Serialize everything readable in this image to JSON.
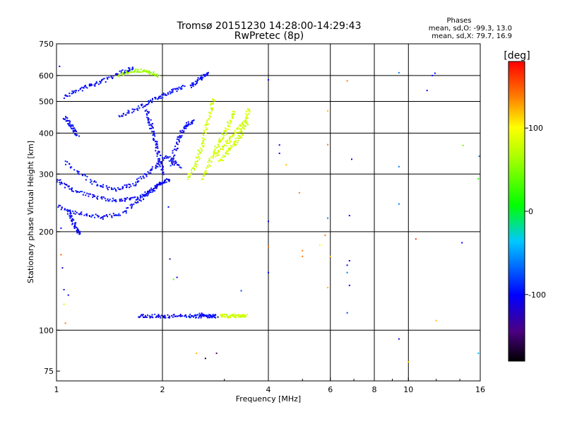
{
  "chart_data": {
    "type": "scatter",
    "title": "Tromsø 20151230 14:28:00-14:29:43",
    "subtitle": "RwPretec (8p)",
    "stats": {
      "heading": "Phases",
      "line1": "mean, sd,O: -99.3, 13.0",
      "line2": "mean, sd,X:  79.7, 16.9"
    },
    "xlabel": "Frequency [MHz]",
    "ylabel": "Stationary phase Virtual Height [km]",
    "x_scale": "log",
    "y_scale": "log",
    "xlim": [
      1,
      16
    ],
    "ylim": [
      70,
      750
    ],
    "x_ticks": [
      {
        "value": 1,
        "label": "1"
      },
      {
        "value": 2,
        "label": "2"
      },
      {
        "value": 4,
        "label": "4"
      },
      {
        "value": 6,
        "label": "6"
      },
      {
        "value": 8,
        "label": "8"
      },
      {
        "value": 10,
        "label": "10"
      },
      {
        "value": 16,
        "label": "16"
      }
    ],
    "y_ticks": [
      {
        "value": 75,
        "label": "75"
      },
      {
        "value": 100,
        "label": "100"
      },
      {
        "value": 200,
        "label": "200"
      },
      {
        "value": 300,
        "label": "300"
      },
      {
        "value": 400,
        "label": "400"
      },
      {
        "value": 500,
        "label": "500"
      },
      {
        "value": 600,
        "label": "600"
      },
      {
        "value": 750,
        "label": "750"
      }
    ],
    "x_grid": [
      2,
      4,
      6,
      8,
      10
    ],
    "y_grid": [
      100,
      200,
      300,
      400,
      500,
      600
    ],
    "grid": true,
    "colorbar": {
      "label": "[deg]",
      "range": [
        -180,
        180
      ],
      "ticks": [
        {
          "value": 100,
          "label": "100"
        },
        {
          "value": 0,
          "label": "0"
        },
        {
          "value": -100,
          "label": "-100"
        }
      ]
    },
    "series": [
      {
        "phase": -100,
        "curve": [
          [
            1.0,
            290
          ],
          [
            1.1,
            270
          ],
          [
            1.3,
            255
          ],
          [
            1.5,
            250
          ],
          [
            1.7,
            255
          ],
          [
            1.85,
            268
          ],
          [
            2.0,
            285
          ]
        ]
      },
      {
        "phase": -100,
        "curve": [
          [
            1.0,
            240
          ],
          [
            1.15,
            228
          ],
          [
            1.35,
            222
          ],
          [
            1.55,
            230
          ],
          [
            1.75,
            255
          ],
          [
            1.95,
            280
          ],
          [
            2.1,
            292
          ]
        ]
      },
      {
        "phase": -100,
        "curve": [
          [
            1.05,
            330
          ],
          [
            1.25,
            285
          ],
          [
            1.45,
            270
          ],
          [
            1.65,
            280
          ],
          [
            1.85,
            310
          ],
          [
            2.05,
            340
          ],
          [
            2.25,
            315
          ]
        ]
      },
      {
        "phase": -100,
        "curve": [
          [
            1.05,
            520
          ],
          [
            1.2,
            555
          ],
          [
            1.35,
            580
          ],
          [
            1.55,
            620
          ],
          [
            1.65,
            635
          ]
        ]
      },
      {
        "phase": -100,
        "curve": [
          [
            1.5,
            450
          ],
          [
            1.7,
            480
          ],
          [
            1.9,
            510
          ],
          [
            2.1,
            535
          ],
          [
            2.3,
            560
          ]
        ]
      },
      {
        "phase": -100,
        "curve": [
          [
            1.8,
            470
          ],
          [
            1.85,
            420
          ],
          [
            1.9,
            380
          ],
          [
            1.95,
            340
          ],
          [
            2.0,
            300
          ]
        ]
      },
      {
        "phase": -100,
        "curve": [
          [
            2.4,
            560
          ],
          [
            2.55,
            590
          ],
          [
            2.7,
            615
          ]
        ]
      },
      {
        "phase": -100,
        "curve": [
          [
            2.1,
            320
          ],
          [
            2.2,
            380
          ],
          [
            2.3,
            420
          ],
          [
            2.45,
            440
          ]
        ]
      },
      {
        "phase": -100,
        "curve": [
          [
            1.05,
            450
          ],
          [
            1.1,
            420
          ],
          [
            1.15,
            395
          ]
        ]
      },
      {
        "phase": -100,
        "curve": [
          [
            1.08,
            230
          ],
          [
            1.12,
            210
          ],
          [
            1.16,
            198
          ]
        ]
      },
      {
        "phase": 60,
        "curve": [
          [
            1.5,
            605
          ],
          [
            1.65,
            625
          ],
          [
            1.8,
            620
          ],
          [
            1.95,
            600
          ]
        ]
      },
      {
        "phase": 80,
        "curve": [
          [
            2.35,
            290
          ],
          [
            2.5,
            330
          ],
          [
            2.6,
            380
          ],
          [
            2.7,
            450
          ],
          [
            2.8,
            520
          ]
        ]
      },
      {
        "phase": 80,
        "curve": [
          [
            2.6,
            290
          ],
          [
            2.75,
            340
          ],
          [
            2.9,
            380
          ],
          [
            3.05,
            420
          ],
          [
            3.2,
            470
          ]
        ]
      },
      {
        "phase": 80,
        "curve": [
          [
            2.8,
            340
          ],
          [
            3.0,
            370
          ],
          [
            3.2,
            400
          ],
          [
            3.4,
            440
          ]
        ]
      },
      {
        "phase": 80,
        "curve": [
          [
            2.9,
            330
          ],
          [
            3.1,
            360
          ],
          [
            3.3,
            390
          ],
          [
            3.45,
            430
          ],
          [
            3.5,
            480
          ]
        ]
      },
      {
        "phase": -100,
        "curve": [
          [
            1.7,
            111
          ],
          [
            1.9,
            111
          ],
          [
            2.1,
            111
          ],
          [
            2.4,
            111
          ],
          [
            2.6,
            111
          ]
        ]
      },
      {
        "phase": 80,
        "curve": [
          [
            2.9,
            111
          ],
          [
            3.1,
            111
          ],
          [
            3.3,
            111
          ],
          [
            3.45,
            111
          ]
        ]
      },
      {
        "phase": -100,
        "curve": [
          [
            2.55,
            112
          ],
          [
            2.7,
            111
          ],
          [
            2.85,
            111
          ]
        ]
      }
    ],
    "scattered_points": [
      [
        1.02,
        640,
        -100
      ],
      [
        1.05,
        133,
        -110
      ],
      [
        1.08,
        128,
        -100
      ],
      [
        1.05,
        120,
        80
      ],
      [
        1.06,
        105,
        140
      ],
      [
        1.03,
        170,
        150
      ],
      [
        1.03,
        205,
        -100
      ],
      [
        1.04,
        155,
        -120
      ],
      [
        2.08,
        238,
        -100
      ],
      [
        2.1,
        165,
        -140
      ],
      [
        2.15,
        143,
        40
      ],
      [
        2.2,
        145,
        -110
      ],
      [
        2.5,
        85,
        120
      ],
      [
        2.65,
        82,
        -170
      ],
      [
        2.85,
        85,
        -150
      ],
      [
        3.35,
        132,
        -80
      ],
      [
        4.0,
        582,
        -100
      ],
      [
        4.0,
        215,
        -100
      ],
      [
        4.0,
        180,
        140
      ],
      [
        4.0,
        150,
        -100
      ],
      [
        4.3,
        368,
        -100
      ],
      [
        4.3,
        347,
        -100
      ],
      [
        4.5,
        320,
        120
      ],
      [
        4.9,
        263,
        140
      ],
      [
        5.0,
        175,
        140
      ],
      [
        5.0,
        168,
        140
      ],
      [
        5.6,
        182,
        100
      ],
      [
        5.8,
        195,
        140
      ],
      [
        5.9,
        468,
        120
      ],
      [
        5.9,
        369,
        140
      ],
      [
        5.9,
        220,
        -60
      ],
      [
        5.9,
        135,
        120
      ],
      [
        6.0,
        168,
        120
      ],
      [
        6.7,
        578,
        140
      ],
      [
        6.7,
        158,
        -100
      ],
      [
        6.7,
        150,
        -60
      ],
      [
        6.8,
        224,
        -100
      ],
      [
        6.8,
        163,
        -100
      ],
      [
        6.8,
        137,
        -100
      ],
      [
        6.9,
        333,
        -100
      ],
      [
        6.7,
        113,
        -80
      ],
      [
        9.4,
        612,
        -60
      ],
      [
        9.4,
        316,
        -60
      ],
      [
        9.4,
        243,
        -60
      ],
      [
        9.4,
        94,
        -100
      ],
      [
        10.0,
        80,
        120
      ],
      [
        10.5,
        190,
        160
      ],
      [
        11.3,
        540,
        -100
      ],
      [
        11.7,
        600,
        -100
      ],
      [
        11.9,
        610,
        -100
      ],
      [
        12.0,
        107,
        120
      ],
      [
        14.3,
        367,
        40
      ],
      [
        14.2,
        185,
        -100
      ],
      [
        15.9,
        340,
        -60
      ],
      [
        15.8,
        290,
        20
      ],
      [
        15.8,
        85,
        -40
      ]
    ]
  }
}
